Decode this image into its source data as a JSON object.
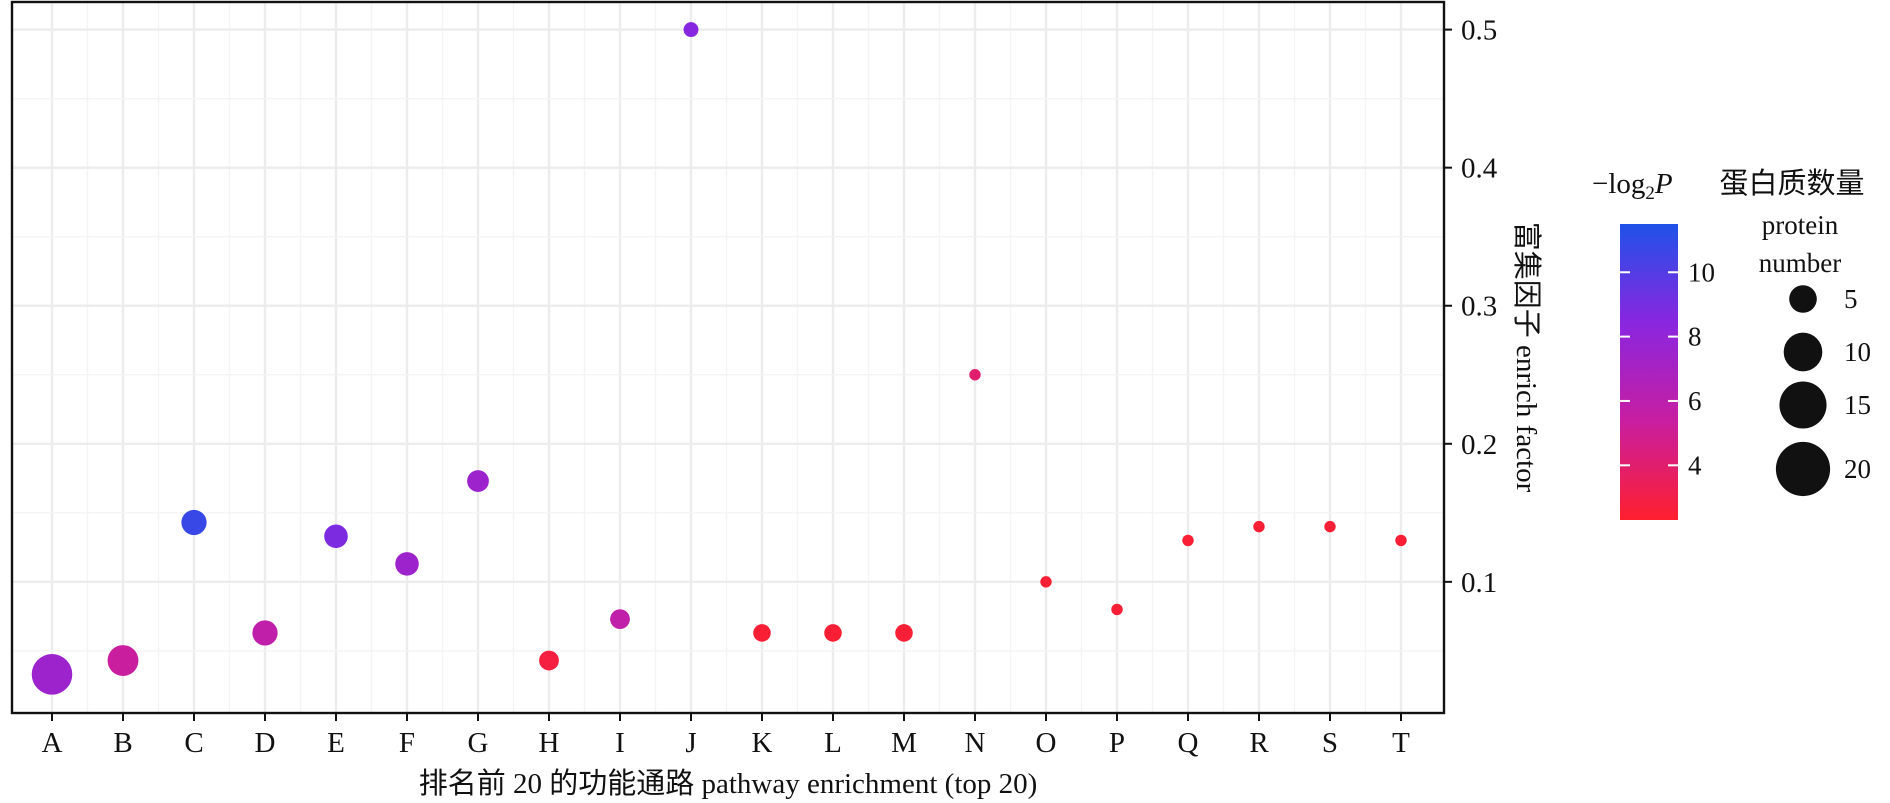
{
  "chart_data": {
    "type": "scatter",
    "xlabel": "排名前 20 的功能通路 pathway enrichment (top 20)",
    "ylabel": "富集因子 enrich factor",
    "y_axis_position": "right",
    "ylim": [
      0.005,
      0.52
    ],
    "y_ticks": [
      0.1,
      0.2,
      0.3,
      0.4,
      0.5
    ],
    "grid": true,
    "categories": [
      "A",
      "B",
      "C",
      "D",
      "E",
      "F",
      "G",
      "H",
      "I",
      "J",
      "K",
      "L",
      "M",
      "N",
      "O",
      "P",
      "Q",
      "R",
      "S",
      "T"
    ],
    "points": [
      {
        "x": "A",
        "enrich_factor": 0.033,
        "neg_log2_p": 7.5,
        "protein_number": 20
      },
      {
        "x": "B",
        "enrich_factor": 0.043,
        "neg_log2_p": 5.3,
        "protein_number": 11
      },
      {
        "x": "C",
        "enrich_factor": 0.143,
        "neg_log2_p": 10.8,
        "protein_number": 7
      },
      {
        "x": "D",
        "enrich_factor": 0.063,
        "neg_log2_p": 5.8,
        "protein_number": 7
      },
      {
        "x": "E",
        "enrich_factor": 0.133,
        "neg_log2_p": 8.8,
        "protein_number": 6
      },
      {
        "x": "F",
        "enrich_factor": 0.113,
        "neg_log2_p": 7.5,
        "protein_number": 6
      },
      {
        "x": "G",
        "enrich_factor": 0.173,
        "neg_log2_p": 7.5,
        "protein_number": 5
      },
      {
        "x": "H",
        "enrich_factor": 0.043,
        "neg_log2_p": 2.8,
        "protein_number": 4
      },
      {
        "x": "I",
        "enrich_factor": 0.073,
        "neg_log2_p": 5.8,
        "protein_number": 4
      },
      {
        "x": "J",
        "enrich_factor": 0.5,
        "neg_log2_p": 8.5,
        "protein_number": 2
      },
      {
        "x": "K",
        "enrich_factor": 0.063,
        "neg_log2_p": 2.5,
        "protein_number": 3
      },
      {
        "x": "L",
        "enrich_factor": 0.063,
        "neg_log2_p": 2.5,
        "protein_number": 3
      },
      {
        "x": "M",
        "enrich_factor": 0.063,
        "neg_log2_p": 2.5,
        "protein_number": 3
      },
      {
        "x": "N",
        "enrich_factor": 0.25,
        "neg_log2_p": 4.0,
        "protein_number": 1
      },
      {
        "x": "O",
        "enrich_factor": 0.1,
        "neg_log2_p": 2.5,
        "protein_number": 1
      },
      {
        "x": "P",
        "enrich_factor": 0.08,
        "neg_log2_p": 2.5,
        "protein_number": 1
      },
      {
        "x": "Q",
        "enrich_factor": 0.13,
        "neg_log2_p": 2.5,
        "protein_number": 1
      },
      {
        "x": "R",
        "enrich_factor": 0.14,
        "neg_log2_p": 2.5,
        "protein_number": 1
      },
      {
        "x": "S",
        "enrich_factor": 0.14,
        "neg_log2_p": 2.5,
        "protein_number": 1
      },
      {
        "x": "T",
        "enrich_factor": 0.13,
        "neg_log2_p": 2.5,
        "protein_number": 1
      }
    ],
    "color_legend": {
      "title_prefix": "−log",
      "title_sub": "2",
      "title_var": "P",
      "range": [
        2.3,
        11.5
      ],
      "ticks": [
        4,
        6,
        8,
        10
      ],
      "colors": [
        "#ff1f2e",
        "#c81ea0",
        "#8a26e0",
        "#1f52e8"
      ]
    },
    "size_legend": {
      "title_zh": "蛋白质数量",
      "title_en_line1": "protein",
      "title_en_line2": "number",
      "entries": [
        5,
        10,
        15,
        20
      ]
    }
  }
}
